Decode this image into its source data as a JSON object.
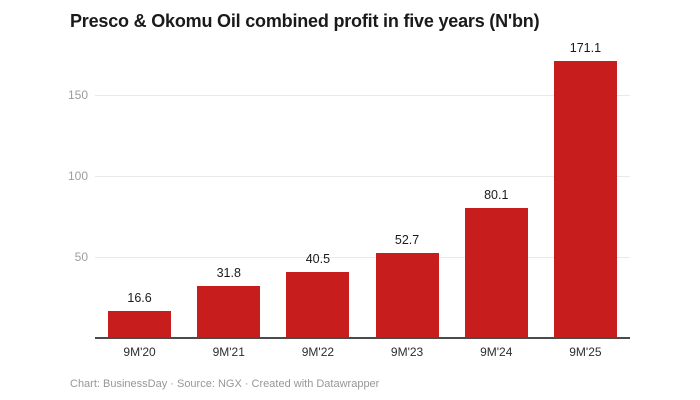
{
  "chart_data": {
    "type": "bar",
    "title": "Presco & Okomu Oil combined profit in five years (N'bn)",
    "categories": [
      "9M'20",
      "9M'21",
      "9M'22",
      "9M'23",
      "9M'24",
      "9M'25"
    ],
    "values": [
      16.6,
      31.8,
      40.5,
      52.7,
      80.1,
      171.1
    ],
    "value_labels": [
      "16.6",
      "31.8",
      "40.5",
      "52.7",
      "80.1",
      "171.1"
    ],
    "xlabel": "",
    "ylabel": "",
    "ylim": [
      0,
      175
    ],
    "yticks": [
      50,
      100,
      150
    ],
    "grid": true,
    "legend": "none",
    "bar_color": "#c71e1d"
  },
  "colors": {
    "bar": "#c71e1d",
    "gridline": "#e9e9e9",
    "axis_line": "#4b4b4b",
    "y_tick_label": "#9d9d9d",
    "x_tick_label": "#2e2e2e",
    "value_label": "#1a1a1a",
    "background": "#ffffff"
  },
  "footer": {
    "attribution": "Chart: BusinessDay · Source: NGX · Created with Datawrapper"
  }
}
